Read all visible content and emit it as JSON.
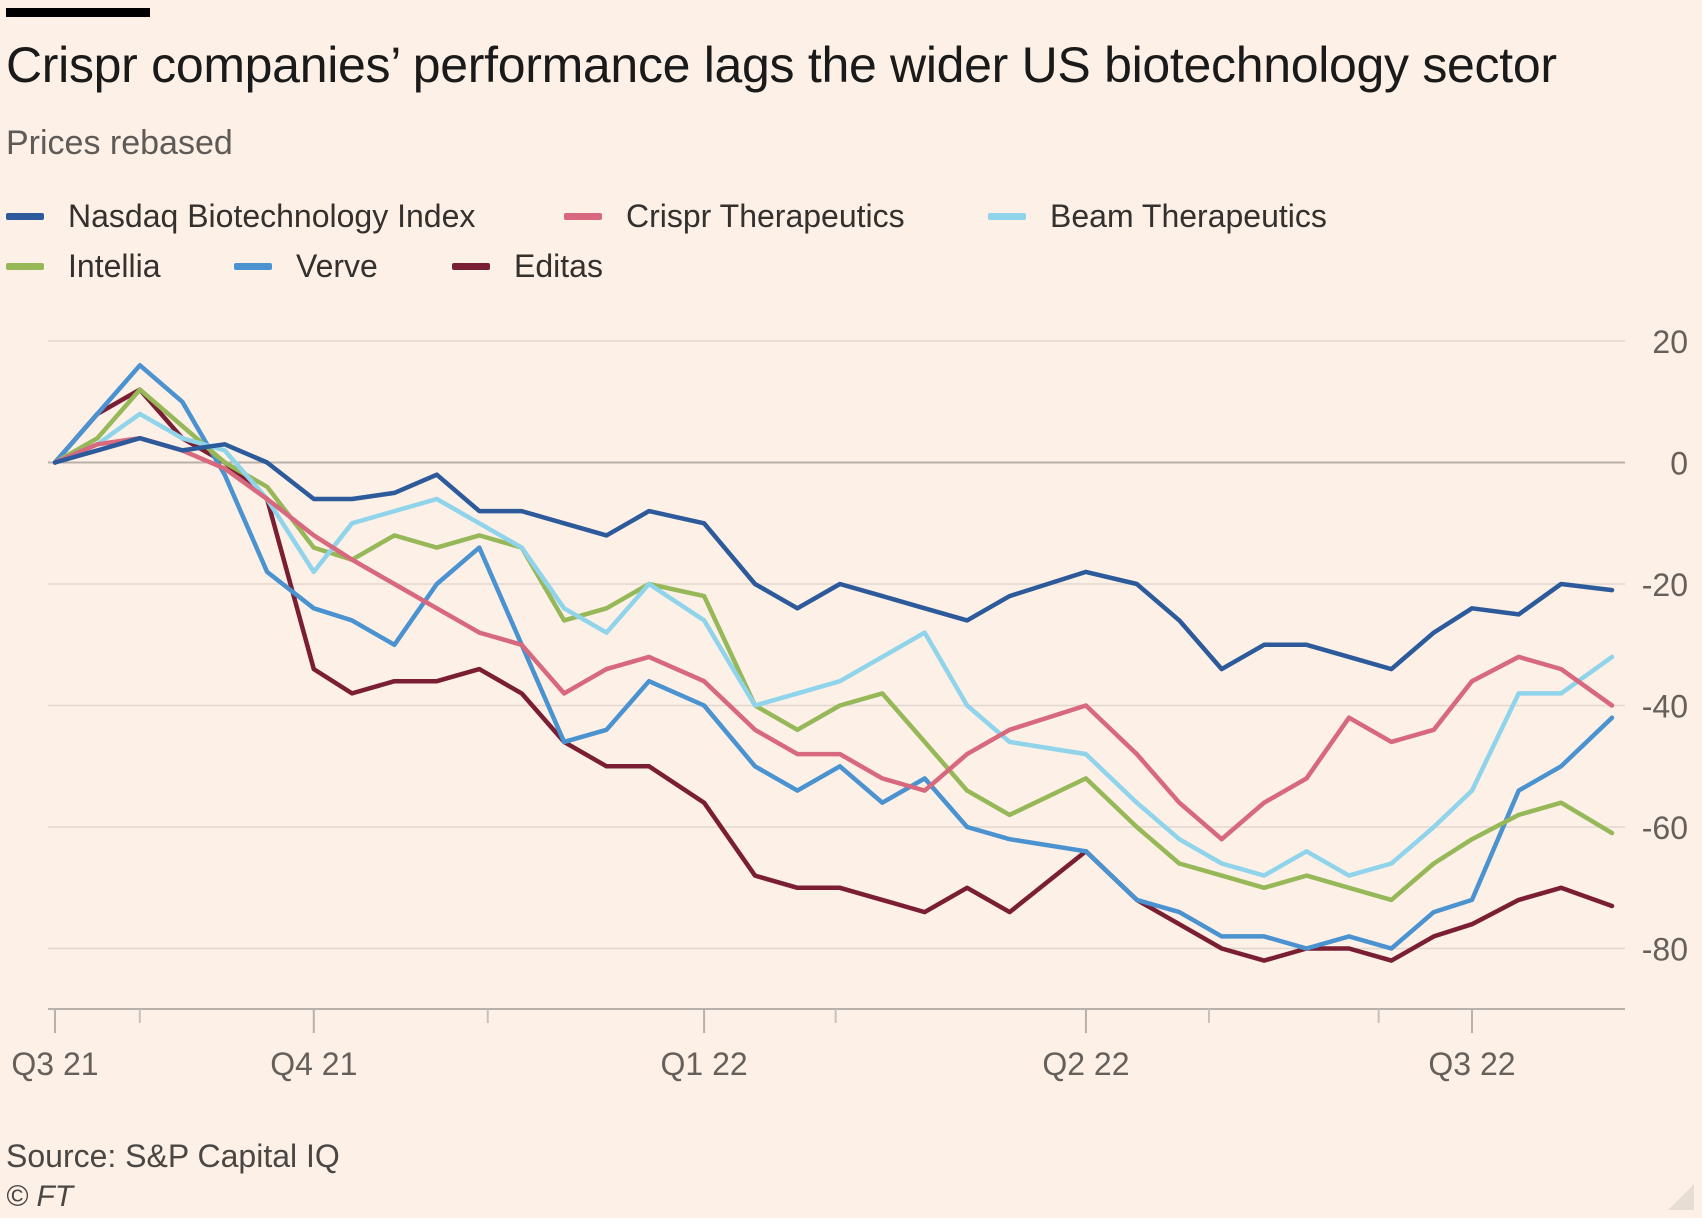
{
  "chart_data": {
    "type": "line",
    "title": "Crispr companies’ performance lags the wider US biotechnology sector",
    "subtitle": "Prices rebased",
    "source": "Source: S&P Capital IQ",
    "copyright": "© FT",
    "ylim": [
      -90,
      22
    ],
    "yticks": [
      20,
      0,
      -20,
      -40,
      -60,
      -80
    ],
    "grid": true,
    "legend_position": "top-left",
    "x_ticks": [
      {
        "label": "Q3 21",
        "x": 0
      },
      {
        "label": "Q4 21",
        "x": 61
      },
      {
        "label": "Q1 22",
        "x": 153
      },
      {
        "label": "Q2 22",
        "x": 243
      },
      {
        "label": "Q3 22",
        "x": 334
      }
    ],
    "x_minor_ticks": [
      20,
      102,
      184,
      272,
      312
    ],
    "x_range": [
      0,
      367
    ],
    "series": [
      {
        "name": "Nasdaq Biotechnology Index",
        "color": "#2c5a9a",
        "x": [
          0,
          10,
          20,
          30,
          40,
          50,
          61,
          70,
          80,
          90,
          100,
          110,
          120,
          130,
          140,
          153,
          165,
          175,
          185,
          195,
          205,
          215,
          225,
          243,
          255,
          265,
          275,
          285,
          295,
          305,
          315,
          325,
          334,
          345,
          355,
          367
        ],
        "y": [
          0,
          2,
          4,
          2,
          3,
          0,
          -6,
          -6,
          -5,
          -2,
          -8,
          -8,
          -10,
          -12,
          -8,
          -10,
          -20,
          -24,
          -20,
          -22,
          -24,
          -26,
          -22,
          -18,
          -20,
          -26,
          -34,
          -30,
          -30,
          -32,
          -34,
          -28,
          -24,
          -25,
          -20,
          -21
        ]
      },
      {
        "name": "Crispr Therapeutics",
        "color": "#d7687d",
        "x": [
          0,
          10,
          20,
          30,
          40,
          50,
          61,
          70,
          80,
          90,
          100,
          110,
          120,
          130,
          140,
          153,
          165,
          175,
          185,
          195,
          205,
          215,
          225,
          243,
          255,
          265,
          275,
          285,
          295,
          305,
          315,
          325,
          334,
          345,
          355,
          367
        ],
        "y": [
          0,
          3,
          4,
          2,
          -1,
          -6,
          -12,
          -16,
          -20,
          -24,
          -28,
          -30,
          -38,
          -34,
          -32,
          -36,
          -44,
          -48,
          -48,
          -52,
          -54,
          -48,
          -44,
          -40,
          -48,
          -56,
          -62,
          -56,
          -52,
          -42,
          -46,
          -44,
          -36,
          -32,
          -34,
          -40
        ]
      },
      {
        "name": "Beam Therapeutics",
        "color": "#8fd4eb",
        "x": [
          0,
          10,
          20,
          30,
          40,
          50,
          61,
          70,
          80,
          90,
          100,
          110,
          120,
          130,
          140,
          153,
          165,
          175,
          185,
          195,
          205,
          215,
          225,
          243,
          255,
          265,
          275,
          285,
          295,
          305,
          315,
          325,
          334,
          345,
          355,
          367
        ],
        "y": [
          0,
          3,
          8,
          4,
          2,
          -6,
          -18,
          -10,
          -8,
          -6,
          -10,
          -14,
          -24,
          -28,
          -20,
          -26,
          -40,
          -38,
          -36,
          -32,
          -28,
          -40,
          -46,
          -48,
          -56,
          -62,
          -66,
          -68,
          -64,
          -68,
          -66,
          -60,
          -54,
          -38,
          -38,
          -32
        ]
      },
      {
        "name": "Intellia",
        "color": "#96b858",
        "x": [
          0,
          10,
          20,
          30,
          40,
          50,
          61,
          70,
          80,
          90,
          100,
          110,
          120,
          130,
          140,
          153,
          165,
          175,
          185,
          195,
          205,
          215,
          225,
          243,
          255,
          265,
          275,
          285,
          295,
          305,
          315,
          325,
          334,
          345,
          355,
          367
        ],
        "y": [
          0,
          4,
          12,
          6,
          0,
          -4,
          -14,
          -16,
          -12,
          -14,
          -12,
          -14,
          -26,
          -24,
          -20,
          -22,
          -40,
          -44,
          -40,
          -38,
          -46,
          -54,
          -58,
          -52,
          -60,
          -66,
          -68,
          -70,
          -68,
          -70,
          -72,
          -66,
          -62,
          -58,
          -56,
          -61
        ]
      },
      {
        "name": "Verve",
        "color": "#4a92d0",
        "x": [
          0,
          10,
          20,
          30,
          40,
          50,
          61,
          70,
          80,
          90,
          100,
          110,
          120,
          130,
          140,
          153,
          165,
          175,
          185,
          195,
          205,
          215,
          225,
          243,
          255,
          265,
          275,
          285,
          295,
          305,
          315,
          325,
          334,
          345,
          355,
          367
        ],
        "y": [
          0,
          8,
          16,
          10,
          -2,
          -18,
          -24,
          -26,
          -30,
          -20,
          -14,
          -30,
          -46,
          -44,
          -36,
          -40,
          -50,
          -54,
          -50,
          -56,
          -52,
          -60,
          -62,
          -64,
          -72,
          -74,
          -78,
          -78,
          -80,
          -78,
          -80,
          -74,
          -72,
          -54,
          -50,
          -42
        ]
      },
      {
        "name": "Editas",
        "color": "#7a1e34",
        "x": [
          0,
          10,
          20,
          30,
          40,
          50,
          61,
          70,
          80,
          90,
          100,
          110,
          120,
          130,
          140,
          153,
          165,
          175,
          185,
          195,
          205,
          215,
          225,
          243,
          255,
          265,
          275,
          285,
          295,
          305,
          315,
          325,
          334,
          345,
          355,
          367
        ],
        "y": [
          0,
          8,
          12,
          4,
          0,
          -6,
          -34,
          -38,
          -36,
          -36,
          -34,
          -38,
          -46,
          -50,
          -50,
          -56,
          -68,
          -70,
          -70,
          -72,
          -74,
          -70,
          -74,
          -64,
          -72,
          -76,
          -80,
          -82,
          -80,
          -80,
          -82,
          -78,
          -76,
          -72,
          -70,
          -73
        ]
      }
    ]
  }
}
